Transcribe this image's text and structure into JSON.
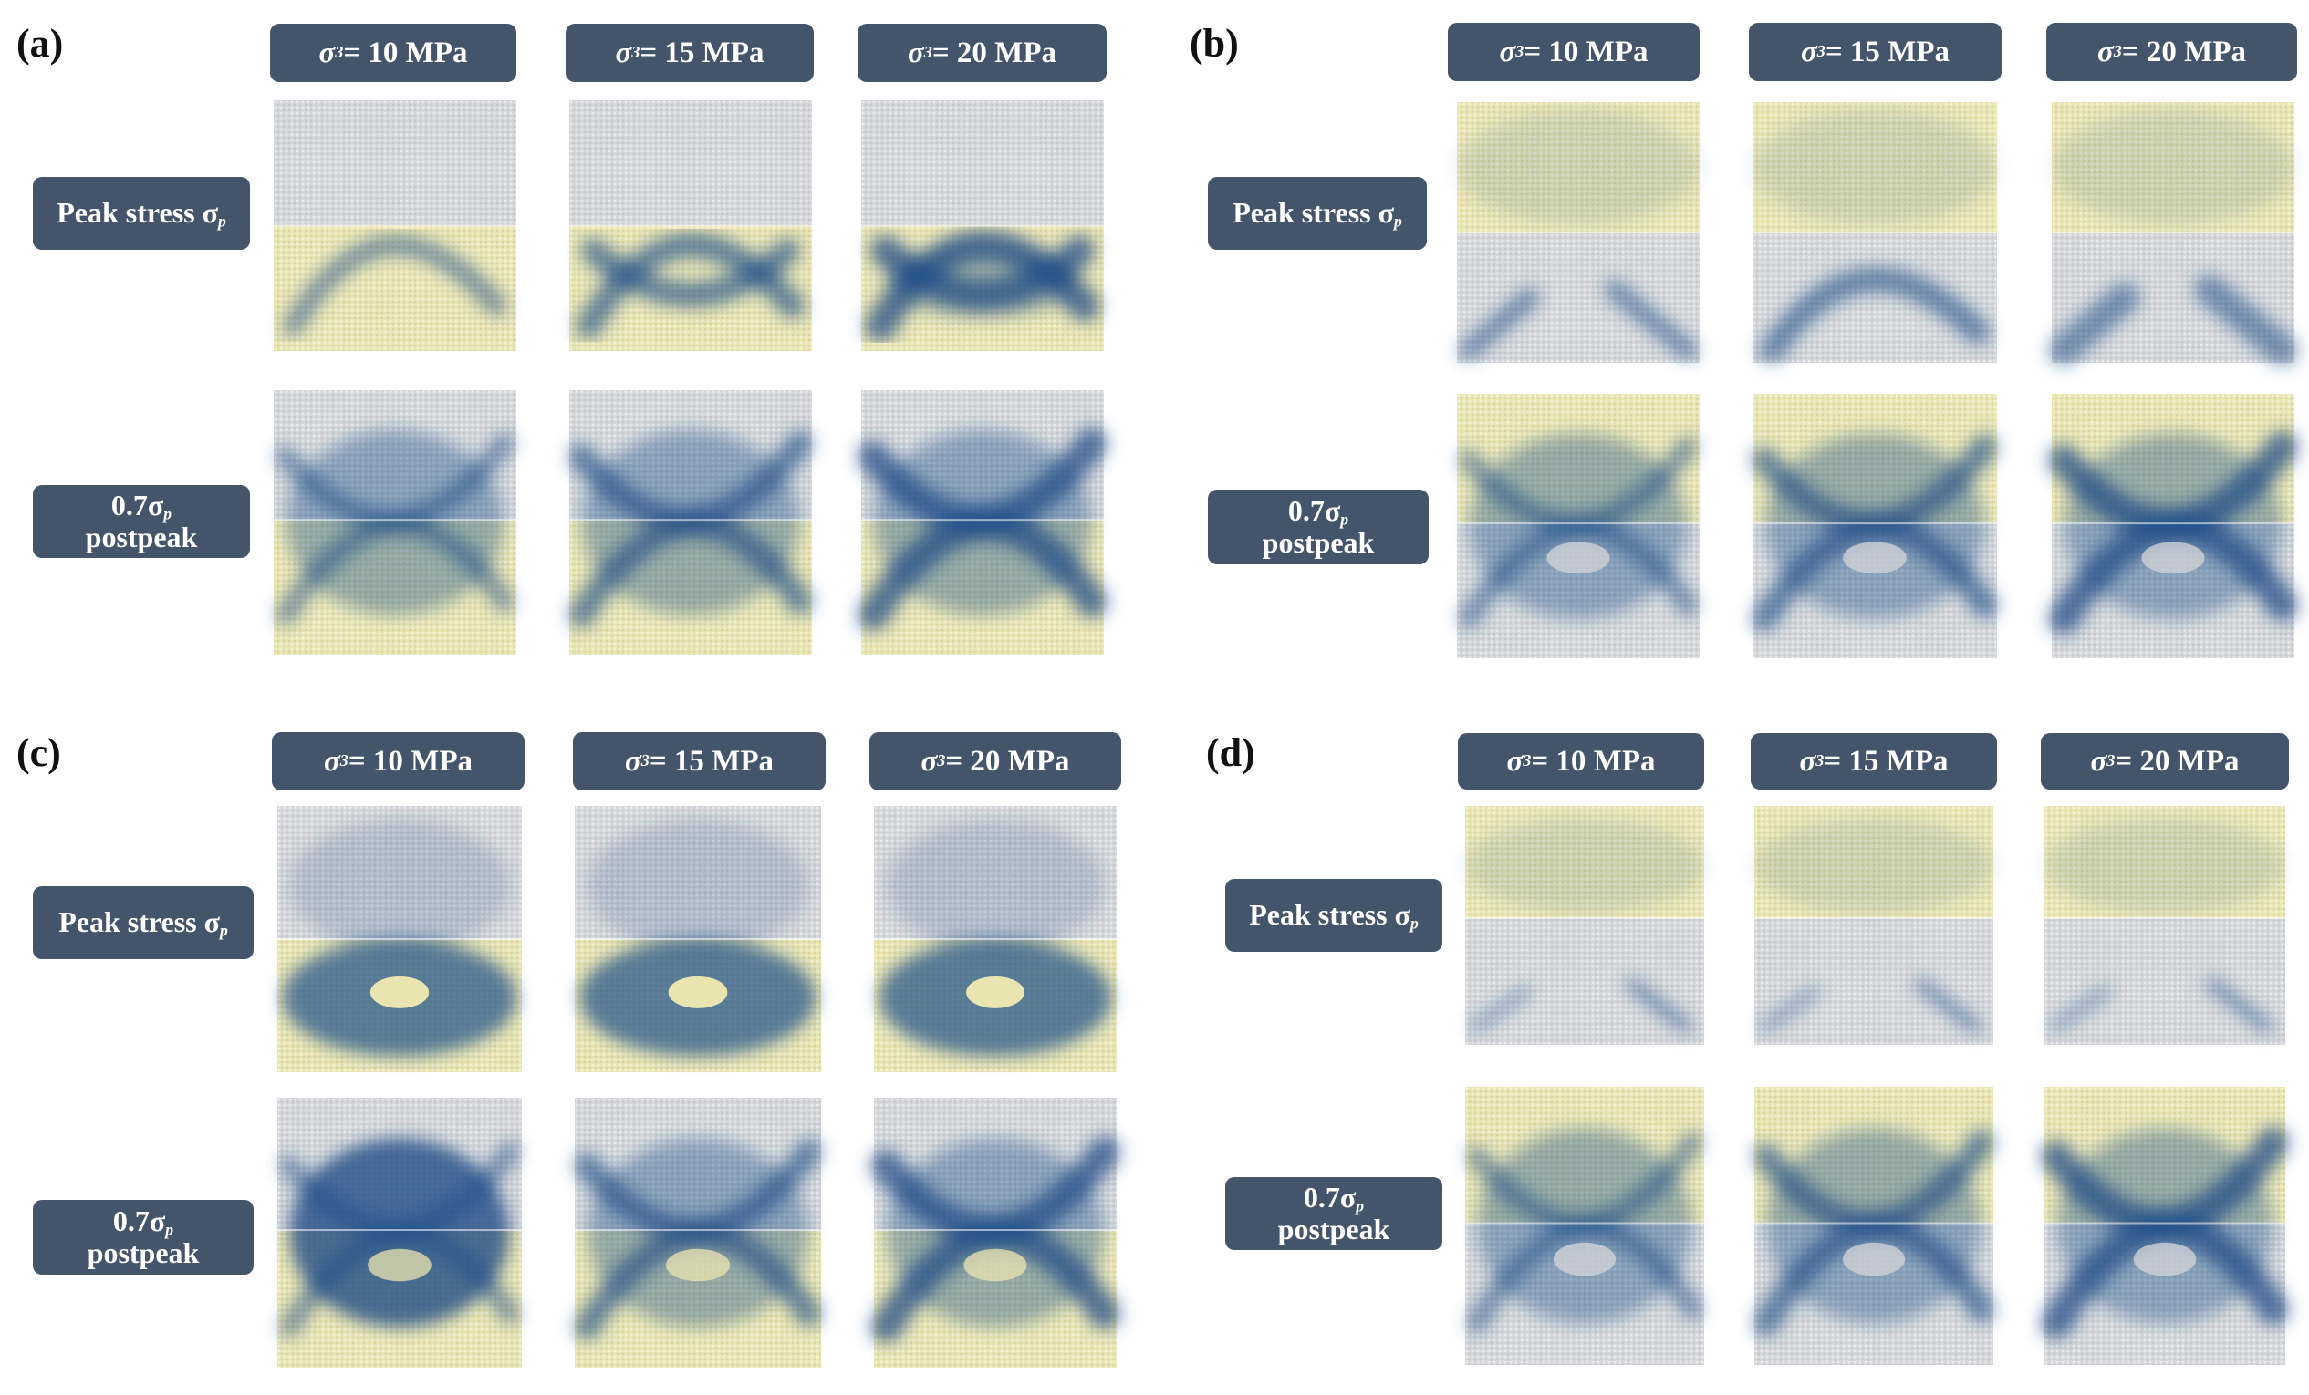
{
  "panels": [
    {
      "letter": "(a)",
      "columns": [
        "= 10 MPa",
        "= 15 MPa",
        "= 20 MPa"
      ],
      "rows": {
        "peak_main": "Peak stress σ",
        "peak_sub": "p",
        "post_main": "0.7σ",
        "post_sub": "p",
        "post_line2": "postpeak"
      },
      "upper_zone": "grey",
      "lower_zone": "yellow"
    },
    {
      "letter": "(b)",
      "columns": [
        "= 10 MPa",
        "= 15 MPa",
        "= 20 MPa"
      ],
      "rows": {
        "peak_main": "Peak stress σ",
        "peak_sub": "p",
        "post_main": "0.7σ",
        "post_sub": "p",
        "post_line2": "postpeak"
      },
      "upper_zone": "yellow",
      "lower_zone": "grey"
    },
    {
      "letter": "(c)",
      "columns": [
        "= 10 MPa",
        "= 15 MPa",
        "= 20 MPa"
      ],
      "rows": {
        "peak_main": "Peak stress σ",
        "peak_sub": "p",
        "post_main": "0.7σ",
        "post_sub": "p",
        "post_line2": "postpeak"
      },
      "upper_zone": "grey",
      "lower_zone": "yellow"
    },
    {
      "letter": "(d)",
      "columns": [
        "= 10 MPa",
        "= 15 MPa",
        "= 20 MPa"
      ],
      "rows": {
        "peak_main": "Peak stress σ",
        "peak_sub": "p",
        "post_main": "0.7σ",
        "post_sub": "p",
        "post_line2": "postpeak"
      },
      "upper_zone": "yellow",
      "lower_zone": "grey"
    }
  ],
  "sigma_symbol": "σ",
  "sigma_sub": "3",
  "colors": {
    "pill": "#44546a",
    "grey_particles": "#d4d6da",
    "yellow_particles": "#e9e4b0",
    "crack": "#1f4e87"
  }
}
